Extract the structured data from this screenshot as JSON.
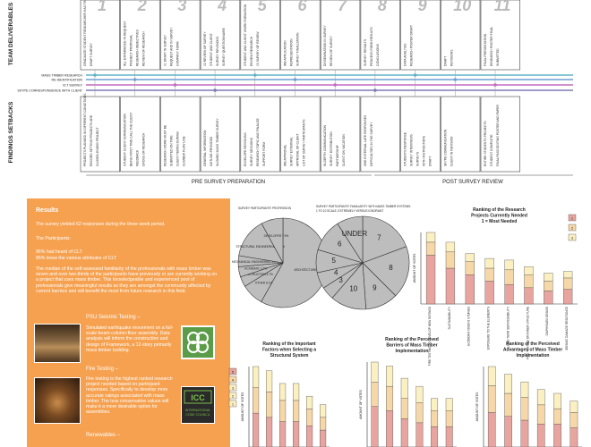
{
  "timeline": {
    "row_labels": {
      "top": "TEAM DELIVERABLES",
      "bottom": "FINDINGS SETBACKS"
    },
    "lines": [
      {
        "label": "MASS TIMBER RESEARCH",
        "color": "#5fb3c9"
      },
      {
        "label": "RE-IDENTIFICATION",
        "color": "#6f9fd3"
      },
      {
        "label": "CLT SURVEY",
        "color": "#c46cc1"
      },
      {
        "label": "SKYPE CORRESPONDENCE WITH CLIENT",
        "color": "#7b7bb3"
      }
    ],
    "columns": [
      {
        "num": "1",
        "top": [
          "GRADUATE STUDENT RESEARCHER HAS THEIR STAND-IN ROLLED",
          "DRAFT SURVEY"
        ],
        "bottom": [
          "PROJECTS PLANNED IN DIFFERENT CONDITIONS",
          "RECORD SETTING PROJECTS ARE",
          "CLOSED-ENDED PROJECT"
        ]
      },
      {
        "num": "2",
        "top": [
          "ALL EXPERIENCE IN REQUEST",
          "PROJECT PROPOSAL",
          "RESEARCH OBJECTIVES",
          "REVIEW OF RESEARCH"
        ],
        "bottom": [
          "STUDENT CLIENT COMMUNICATION",
          "BEING FIRST TIME CALL THE CLIENT",
          "FEEDBACK",
          "CROSS OF RESEARCH"
        ]
      },
      {
        "num": "3",
        "top": [
          "01 DRAFT IN SURVEY",
          "REQUEST AND IN SURVEY",
          "COMPANY FORM"
        ],
        "bottom": [
          "RESEARCH WORK MUST BE",
          "SUBMITTED ON TIME",
          "CLIENT TERMS DURING",
          "CLIMBER FLAW LINE"
        ]
      },
      {
        "num": "4",
        "top": [
          "02 REVIEW OF SURVEY",
          "STUDENT AND CLIENT",
          "SURVEY REVISIONS",
          "SURVEY QUESTIONNAIRE"
        ],
        "bottom": [
          "GENERAL INFORMATION",
          "OUTLINE PROVIDED",
          "SLOWED MASS TIMBER SURVEY"
        ]
      },
      {
        "num": "5",
        "top": [
          "STUDENT AND CLIENT WORK FORMATION",
          "REVIEW RESEARCH",
          "03 SURVEY OF REVIEW"
        ],
        "bottom": [
          "ENVELOPE REVISIONS",
          "SURVEY SESSIONS",
          "RESEARCH TOPIC AND FINALIZE",
          "SUPPORT FORM"
        ]
      },
      {
        "num": "6",
        "top": [
          "IRB APPLICATION",
          "REPRESENTATION",
          "SURVEY FINALIZATION"
        ],
        "bottom": [
          "IRB APPROVAL",
          "SURVEY EXTERNAL",
          "APPROVAL OF CLIENT",
          "LIST OF SURVEY PARTICIPANTS"
        ]
      },
      {
        "num": "7",
        "top": [
          "DISSEMINATION IN SURVEY",
          "REVIEW OF SURVEY"
        ],
        "bottom": [
          "IN-DEPTH COMMUNICATION",
          "SURVEY DISTRIBUTION",
          "PARTNERSHIP",
          "CLIENT ON VACATION"
        ]
      },
      {
        "num": "8",
        "top": [
          "SURVEY RESULTS",
          "PROCESS FORM RESULTS",
          "CONCLUSIONS"
        ],
        "bottom": [
          "ONE EXTERNAL LATE RESPONSES",
          "DIFFICULTIES IN THE SURVEY"
        ]
      },
      {
        "num": "9",
        "top": [
          "DATA ANALYSIS",
          "RESEARCH POSTER DRAFT"
        ],
        "bottom": [
          "STUDENTS RESPONSE",
          "SURVEY INTERVIEWS",
          "SURVEYS",
          "WITH INSTRUCTORS",
          "DRAFT"
        ]
      },
      {
        "num": "10",
        "top": [
          "DRAFT",
          "REVISIONS"
        ],
        "bottom": [
          "SKYPE COMMUNICATION",
          "CLIENT IN REVISION"
        ]
      },
      {
        "num": "11",
        "top": [
          "FINAL PRESENTATION",
          "RESEARCH POSTER FINAL",
          "SUBMITTED"
        ],
        "bottom": [
          "ENTIRE STUDENTS PROJECTS",
          "STUDENT COMPLETE",
          "FINAL PASS EDITING POSTER AND PAPER"
        ]
      }
    ],
    "phases": [
      "PRE SURVEY PREPARATION",
      "POST SURVEY REVIEW"
    ]
  },
  "results_panel": {
    "heading": "Results",
    "p1": "The survey yielded 62 responses during the three week period.",
    "p2": "The Participants:",
    "p3": "96% had heard of CLT",
    "p4": "85% knew the various attributes of CLT",
    "p5": "The median of the self-assessed familiarity of the professionals with mass timber was seven and over two-thirds of the participants have previously or are currently working on a project that uses mass timber. This knowledgeable and experienced pool of professionals give meaningful results as they are amongst the community affected by current barriers and will benefit the most from future research in this field.",
    "seismic_title": "PSU Seismic Testing –",
    "seismic_text": "Simulated earthquake movement on a full-scale beam-column-floor assembly. Data analysis will inform the construction and design of Framework, a 12-story primarily mass timber building.",
    "fire_title": "Fire Testing –",
    "fire_text": "Fire testing is the highest ranked research project needed based on participant responses. Specifically to develop more accurate ratings associated with mass timber. The less conservative values will make it a more desirable option for assemblies.",
    "renew_title": "Renewables –",
    "logo2_lines": [
      "ICC",
      "INTERNATIONAL",
      "CODE COUNCIL"
    ]
  },
  "pie_charts": [
    {
      "title": "SURVEY PARTICIPANTS' PROFESSION",
      "slices": [
        {
          "label": "ARCHITECTURE",
          "value": 58.1,
          "text": "ARCHITECTURE 58.1%"
        },
        {
          "label": "OTHER",
          "value": 8.1,
          "text": "OTHER 8.1%"
        },
        {
          "label": "CONSTRUCTION",
          "value": 3.7,
          "text": "CONSTRUCTION 3.7%"
        },
        {
          "label": "ACADEMIC",
          "value": 3.7,
          "text": "ACADEMIC 3.7%"
        },
        {
          "label": "MECHANICAL ENGINEERING",
          "value": 4.0,
          "text": "MECHANICAL ENGINEERING 4.0%"
        },
        {
          "label": "STRUCTURAL ENGINEERING",
          "value": 14.5,
          "text": "STRUCTURAL ENGINEERING 14.5%"
        },
        {
          "label": "DEVELOPER",
          "value": 7.9,
          "text": "DEVELOPER 7.9%"
        }
      ]
    },
    {
      "title": "SURVEY PARTICIPANTS' FAMILIARITY WITH MASS TIMBER SYSTEMS",
      "subtitle": "1 TO 10 SCALE, EXTREMELY VERSUS IGNORANT",
      "slices": [
        {
          "label": "7",
          "value": 17
        },
        {
          "label": "8",
          "value": 16
        },
        {
          "label": "9",
          "value": 10
        },
        {
          "label": "10",
          "value": 11
        },
        {
          "label": "3",
          "value": 4
        },
        {
          "label": "4",
          "value": 5
        },
        {
          "label": "5",
          "value": 7
        },
        {
          "label": "6",
          "value": 10
        },
        {
          "label": "UNDER",
          "value": 8
        }
      ]
    }
  ],
  "chart_data": [
    {
      "type": "bar",
      "title": "Ranking of the Research Projects Currently Needed 1 = Most Needed",
      "ylabel": "AMOUNT OF VOTES",
      "categories": [
        "FIRE TESTING TO DEVELOP NEW RATINGS",
        "SUSTAINABILITY",
        "ECONOMY OVER 6 STORIES",
        "EXPOSURE TO THE ELEMENTS",
        "LONG TERM SERVICEABILITY",
        "FIRE TESTING ON INNER STRUCTURE",
        "DIAPHRAGM DESIGN",
        "SEISMIC DAMAGE RESISTANCE"
      ],
      "legend": [
        "1",
        "2",
        "3"
      ],
      "series": [
        {
          "name": "1",
          "values": [
            30,
            22,
            18,
            14,
            12,
            10,
            8,
            9
          ]
        },
        {
          "name": "2",
          "values": [
            8,
            10,
            8,
            8,
            9,
            8,
            6,
            7
          ]
        },
        {
          "name": "3",
          "values": [
            6,
            6,
            5,
            6,
            6,
            5,
            5,
            4
          ]
        }
      ]
    },
    {
      "type": "bar",
      "title": "Ranking of the Important Factors when Selecting a Structural System",
      "ylabel": "AMOUNT OF VOTES",
      "legend": [
        "5",
        "4",
        "3",
        "2",
        "1"
      ],
      "series": [
        {
          "name": "1",
          "values": [
            8,
            7,
            6,
            6,
            5,
            4
          ]
        },
        {
          "name": "2",
          "values": [
            6,
            6,
            5,
            5,
            4,
            3
          ]
        },
        {
          "name": "3",
          "values": [
            5,
            5,
            4,
            4,
            3,
            3
          ]
        }
      ]
    },
    {
      "type": "bar",
      "title": "Ranking of the Perceived Barriers of Mass Timber Implementation",
      "ylabel": "AMOUNT OF VOTES",
      "series": [
        {
          "name": "1",
          "values": [
            10,
            9,
            7,
            6,
            5,
            5
          ]
        },
        {
          "name": "2",
          "values": [
            6,
            6,
            5,
            5,
            4,
            4
          ]
        },
        {
          "name": "3",
          "values": [
            5,
            5,
            5,
            4,
            3,
            3
          ]
        }
      ]
    },
    {
      "type": "bar",
      "title": "Ranking of the Perceived Advantages of Mass Timber Implementation",
      "ylabel": "AMOUNT OF VOTES",
      "series": [
        {
          "name": "1",
          "values": [
            9,
            8,
            7,
            6,
            6,
            5
          ]
        },
        {
          "name": "2",
          "values": [
            7,
            6,
            6,
            5,
            4,
            4
          ]
        },
        {
          "name": "3",
          "values": [
            5,
            5,
            4,
            4,
            4,
            3
          ]
        }
      ]
    }
  ],
  "colors": {
    "orange": "#f6a150",
    "bar1": "#e8a49e",
    "bar2": "#f6d7a8",
    "bar3": "#fbf0c2",
    "pie": "#bdbdbd"
  }
}
